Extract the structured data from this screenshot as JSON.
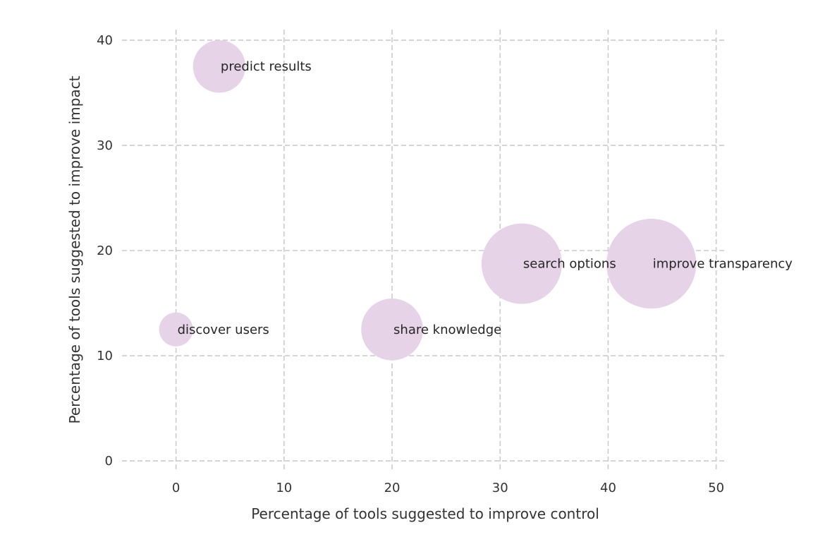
{
  "chart_data": {
    "type": "scatter",
    "title": "",
    "xlabel": "Percentage of tools suggested to improve control",
    "ylabel": "Percentage of tools suggested to improve impact",
    "xlim": [
      -5,
      51
    ],
    "ylim": [
      -1,
      41
    ],
    "x_ticks": [
      0,
      10,
      20,
      30,
      40,
      50
    ],
    "y_ticks": [
      0,
      10,
      20,
      30,
      40
    ],
    "grid": true,
    "bubble_color": "#e6d3e8",
    "points": [
      {
        "label": "predict results",
        "x": 4,
        "y": 37.5,
        "size": 3
      },
      {
        "label": "improve transparency",
        "x": 44,
        "y": 18.75,
        "size": 7
      },
      {
        "label": "search options",
        "x": 32,
        "y": 18.75,
        "size": 6
      },
      {
        "label": "discover users",
        "x": 0,
        "y": 12.5,
        "size": 1
      },
      {
        "label": "share knowledge",
        "x": 20,
        "y": 12.5,
        "size": 4
      }
    ]
  }
}
